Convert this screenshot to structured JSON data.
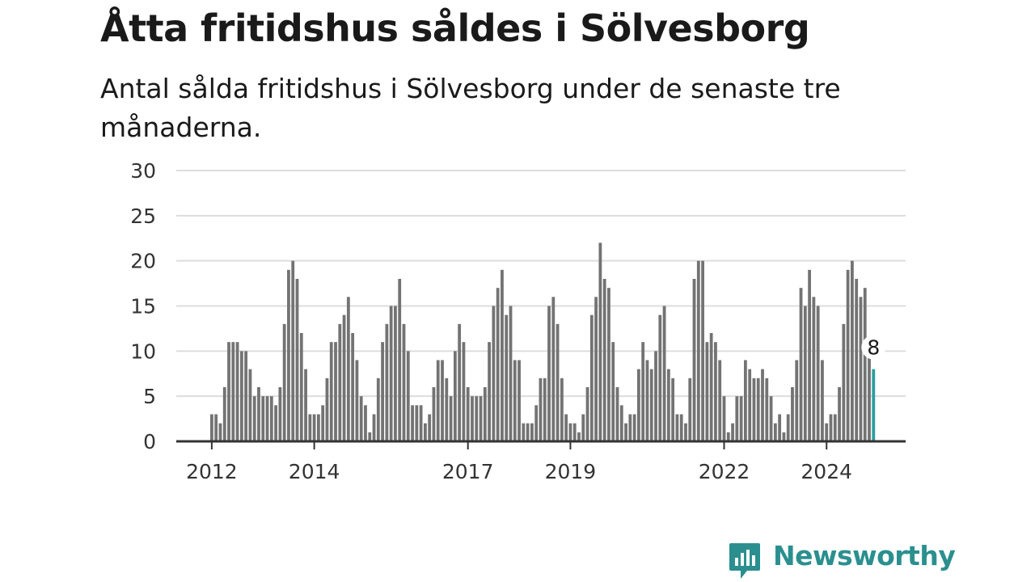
{
  "header": {
    "title": "Åtta fritidshus såldes i Sölvesborg",
    "subtitle": "Antal sålda fritidshus i Sölvesborg under de senaste tre månaderna."
  },
  "brand": {
    "name": "Newsworthy",
    "icon": "bar-chart-speech-bubble-icon",
    "color": "#2b8f8f"
  },
  "colors": {
    "bar": "#737373",
    "highlight": "#2a9d9d",
    "grid": "#dddddd",
    "axis": "#333333"
  },
  "chart_data": {
    "type": "bar",
    "title": "Åtta fritidshus såldes i Sölvesborg",
    "subtitle": "Antal sålda fritidshus i Sölvesborg under de senaste tre månaderna.",
    "xlabel": "",
    "ylabel": "",
    "ylim": [
      0,
      30
    ],
    "yticks": [
      0,
      5,
      10,
      15,
      20,
      25,
      30
    ],
    "grid": true,
    "legend": "none",
    "start_month": "2012-01",
    "xtick_labels": [
      "2012",
      "2014",
      "2017",
      "2019",
      "2022",
      "2024"
    ],
    "values": [
      3,
      3,
      2,
      6,
      11,
      11,
      11,
      10,
      10,
      8,
      5,
      6,
      5,
      5,
      5,
      4,
      6,
      13,
      19,
      20,
      18,
      12,
      8,
      3,
      3,
      3,
      4,
      7,
      11,
      11,
      13,
      14,
      16,
      12,
      9,
      5,
      4,
      1,
      3,
      7,
      11,
      13,
      15,
      15,
      18,
      13,
      10,
      4,
      4,
      4,
      2,
      3,
      6,
      9,
      9,
      7,
      5,
      10,
      13,
      11,
      6,
      5,
      5,
      5,
      6,
      11,
      15,
      17,
      19,
      14,
      15,
      9,
      9,
      2,
      2,
      2,
      4,
      7,
      7,
      15,
      16,
      13,
      7,
      3,
      2,
      2,
      1,
      3,
      6,
      14,
      16,
      22,
      18,
      17,
      11,
      6,
      4,
      2,
      3,
      3,
      8,
      11,
      9,
      8,
      10,
      14,
      15,
      8,
      7,
      3,
      3,
      2,
      7,
      18,
      20,
      20,
      11,
      12,
      11,
      9,
      5,
      1,
      2,
      5,
      5,
      9,
      8,
      7,
      7,
      8,
      7,
      5,
      2,
      3,
      1,
      3,
      6,
      9,
      17,
      15,
      19,
      16,
      15,
      9,
      2,
      3,
      3,
      6,
      13,
      19,
      20,
      18,
      16,
      17,
      10,
      8
    ],
    "highlight_last": 1,
    "last_value_label": "8"
  }
}
